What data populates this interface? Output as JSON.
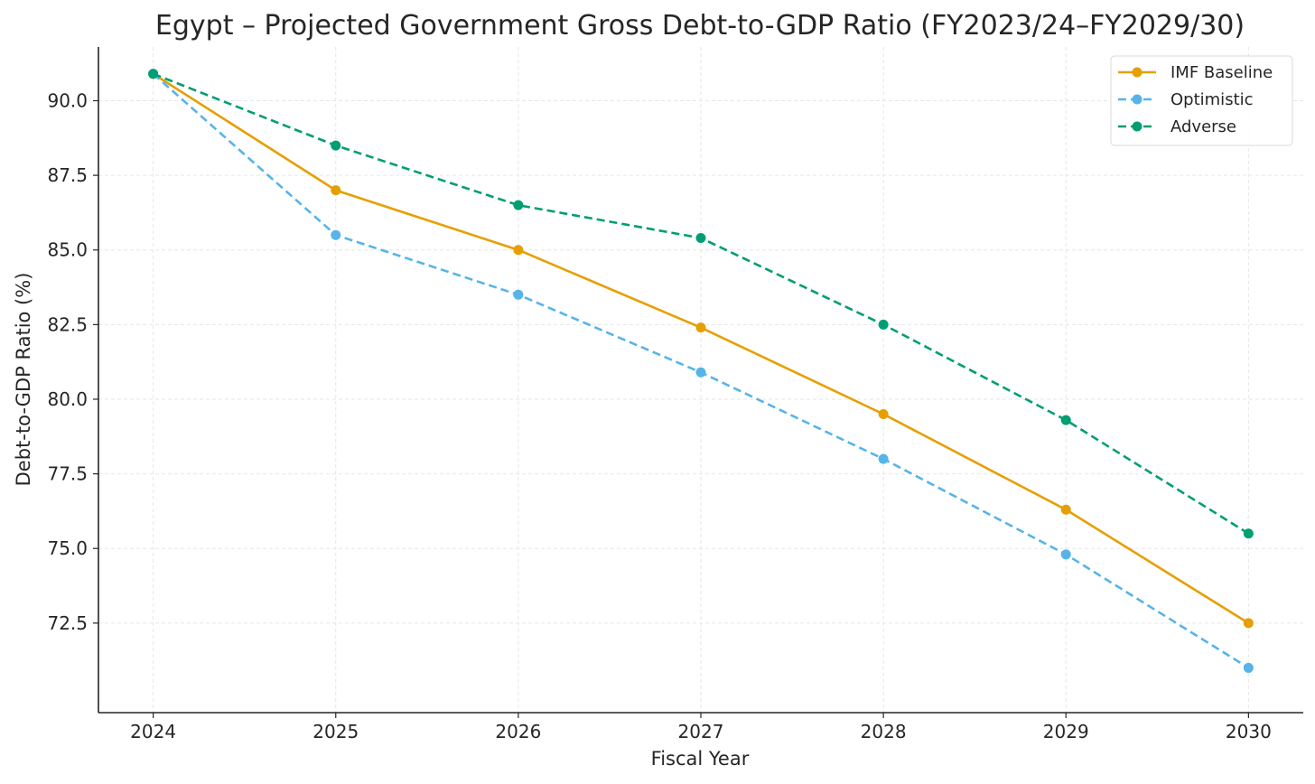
{
  "chart_data": {
    "type": "line",
    "title": "Egypt – Projected Government Gross Debt-to-GDP Ratio (FY2023/24–FY2029/30)",
    "xlabel": "Fiscal Year",
    "ylabel": "Debt-to-GDP Ratio (%)",
    "x": [
      2024,
      2025,
      2026,
      2027,
      2028,
      2029,
      2030
    ],
    "x_tick_labels": [
      "2024",
      "2025",
      "2026",
      "2027",
      "2028",
      "2029",
      "2030"
    ],
    "xlim": [
      2023.7,
      2030.3
    ],
    "ylim": [
      69.5,
      91.8
    ],
    "y_ticks": [
      72.5,
      75.0,
      77.5,
      80.0,
      82.5,
      85.0,
      87.5,
      90.0
    ],
    "y_tick_labels": [
      "72.5",
      "75.0",
      "77.5",
      "80.0",
      "82.5",
      "85.0",
      "87.5",
      "90.0"
    ],
    "grid": true,
    "legend_position": "top-right",
    "series": [
      {
        "name": "IMF Baseline",
        "color": "#E69F00",
        "line_style": "solid",
        "values": [
          90.9,
          87.0,
          85.0,
          82.4,
          79.5,
          76.3,
          72.5
        ]
      },
      {
        "name": "Optimistic",
        "color": "#56B4E9",
        "line_style": "dashed",
        "values": [
          90.9,
          85.5,
          83.5,
          80.9,
          78.0,
          74.8,
          71.0
        ]
      },
      {
        "name": "Adverse",
        "color": "#009E73",
        "line_style": "dashed",
        "values": [
          90.9,
          88.5,
          86.5,
          85.4,
          82.5,
          79.3,
          75.5
        ]
      }
    ]
  }
}
